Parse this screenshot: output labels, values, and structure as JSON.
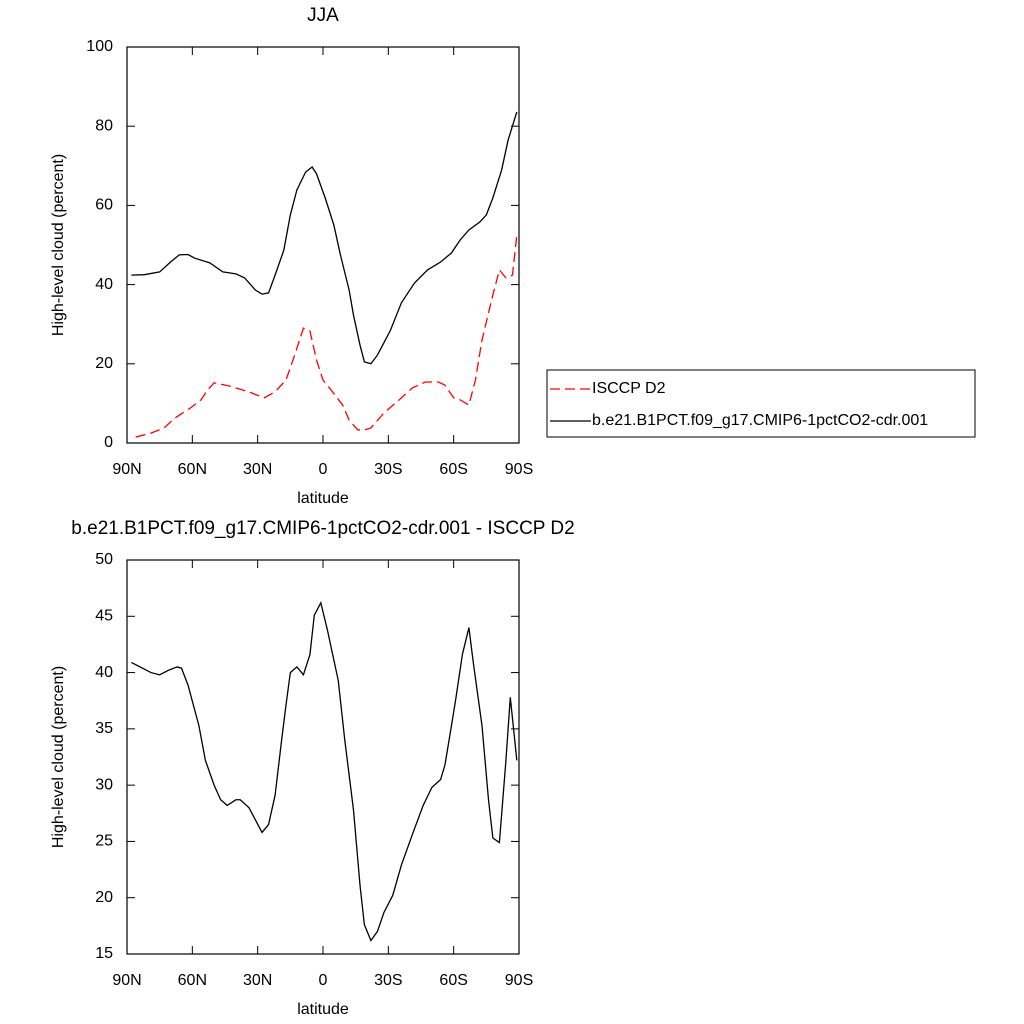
{
  "chart_data": [
    {
      "type": "line",
      "title": "JJA",
      "xlabel": "latitude",
      "ylabel": "High-level cloud (percent)",
      "xlim": [
        90,
        -90
      ],
      "xticks": [
        {
          "value": 90,
          "label": "90N"
        },
        {
          "value": 60,
          "label": "60N"
        },
        {
          "value": 30,
          "label": "30N"
        },
        0,
        {
          "value": -30,
          "label": "30S"
        },
        {
          "value": -60,
          "label": "60S"
        },
        {
          "value": -90,
          "label": "90S"
        }
      ],
      "ylim": [
        0,
        100
      ],
      "yticks": [
        0,
        20,
        40,
        60,
        80,
        100
      ],
      "legend": "right",
      "series": [
        {
          "name": "ISCCP D2",
          "color": "#ff0000",
          "dash": true,
          "x": [
            86,
            79,
            73,
            68,
            61,
            56,
            53,
            50,
            43,
            34,
            27,
            22,
            17,
            13,
            9,
            6,
            3,
            0,
            -3,
            -9,
            -12,
            -16,
            -19,
            -22,
            -28,
            -35,
            -41,
            -47,
            -53,
            -56,
            -60,
            -63,
            -67,
            -70,
            -73,
            -78,
            -81,
            -84,
            -87,
            -89
          ],
          "values": [
            1.5,
            2.5,
            3.8,
            6.3,
            8.8,
            10.9,
            13.4,
            15.2,
            14.4,
            12.9,
            11.4,
            12.9,
            15.9,
            22.2,
            29,
            28.3,
            21,
            15.9,
            13.9,
            9.6,
            5.8,
            3.3,
            3.3,
            3.8,
            7.6,
            10.9,
            13.9,
            15.4,
            15.4,
            14.6,
            11.4,
            10.9,
            9.6,
            15.9,
            26,
            37.4,
            43.7,
            41.7,
            42.4,
            52.5
          ]
        },
        {
          "name": "b.e21.B1PCT.f09_g17.CMIP6-1pctCO2-cdr.001",
          "color": "#000000",
          "dash": false,
          "x": [
            88,
            82,
            75,
            70,
            66,
            62,
            59,
            52,
            46,
            40,
            36,
            31,
            28,
            25,
            22,
            18,
            15,
            12,
            8,
            5,
            3,
            -1,
            -5,
            -8,
            -12,
            -14,
            -17,
            -19,
            -22,
            -25,
            -31,
            -36,
            -42,
            -48,
            -54,
            -59,
            -63,
            -67,
            -72,
            -75,
            -78,
            -82,
            -85,
            -89
          ],
          "values": [
            42.4,
            42.5,
            43.2,
            45.7,
            47.5,
            47.6,
            46.7,
            45.5,
            43.2,
            42.7,
            41.7,
            38.6,
            37.6,
            37.9,
            42.4,
            48.7,
            57.6,
            63.9,
            68.4,
            69.7,
            68,
            61.9,
            55,
            47.5,
            38.6,
            32.3,
            24.7,
            20.5,
            20,
            22.2,
            28.5,
            35.4,
            40.4,
            43.7,
            45.7,
            48,
            51.3,
            53.8,
            55.8,
            57.6,
            61.9,
            68.9,
            76.5,
            83.6
          ]
        }
      ]
    },
    {
      "type": "line",
      "title": "b.e21.B1PCT.f09_g17.CMIP6-1pctCO2-cdr.001 - ISCCP D2",
      "xlabel": "latitude",
      "ylabel": "High-level cloud (percent)",
      "xlim": [
        90,
        -90
      ],
      "xticks": [
        {
          "value": 90,
          "label": "90N"
        },
        {
          "value": 60,
          "label": "60N"
        },
        {
          "value": 30,
          "label": "30N"
        },
        0,
        {
          "value": -30,
          "label": "30S"
        },
        {
          "value": -60,
          "label": "60S"
        },
        {
          "value": -90,
          "label": "90S"
        }
      ],
      "ylim": [
        15,
        50
      ],
      "yticks": [
        15,
        20,
        25,
        30,
        35,
        40,
        45,
        50
      ],
      "series": [
        {
          "color": "#000000",
          "dash": false,
          "x": [
            88,
            79,
            75,
            71,
            67,
            65,
            62,
            57,
            54,
            50,
            47,
            44,
            40,
            38,
            34,
            31,
            28,
            25,
            22,
            19,
            17,
            15,
            12,
            9,
            6,
            4,
            1,
            -2,
            -7,
            -10,
            -14,
            -17,
            -19,
            -22,
            -25,
            -28,
            -32,
            -36,
            -41,
            -46,
            -50,
            -54,
            -56,
            -59,
            -61,
            -64,
            -67,
            -69,
            -73,
            -76,
            -78,
            -81,
            -84,
            -86,
            -89
          ],
          "values": [
            40.9,
            40,
            39.8,
            40.2,
            40.5,
            40.4,
            38.9,
            35.3,
            32.2,
            30,
            28.7,
            28.2,
            28.7,
            28.7,
            28,
            26.9,
            25.8,
            26.5,
            29.1,
            34,
            37.1,
            40,
            40.5,
            39.8,
            41.6,
            45.1,
            46.2,
            43.8,
            39.3,
            34,
            27.8,
            21.1,
            17.6,
            16.2,
            17,
            18.7,
            20.2,
            22.9,
            25.6,
            28.2,
            29.8,
            30.5,
            31.8,
            35.3,
            37.7,
            41.6,
            44,
            40.9,
            35.3,
            28.7,
            25.3,
            24.9,
            32.2,
            37.8,
            32.2
          ]
        }
      ]
    }
  ]
}
